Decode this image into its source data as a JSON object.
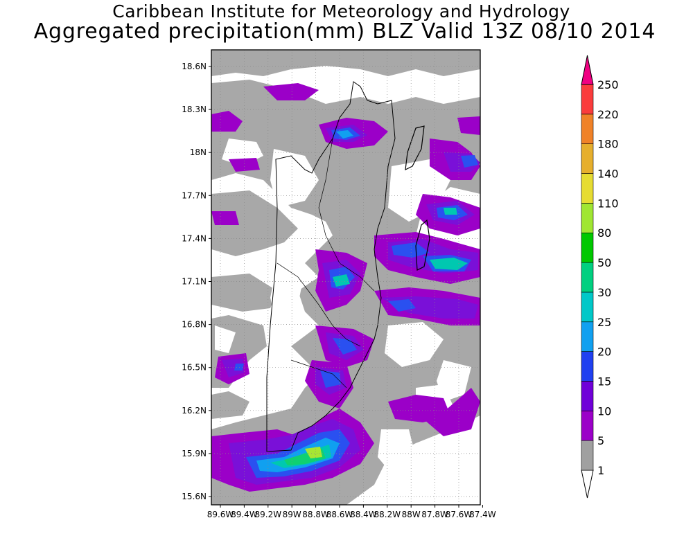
{
  "title": {
    "line1": "Caribbean Institute for Meteorology and Hydrology",
    "line2": "Aggregated precipitation(mm) BLZ Valid 13Z 08/10 2014"
  },
  "map": {
    "lat_labels": [
      "18.6N",
      "18.3N",
      "18N",
      "17.7N",
      "17.4N",
      "17.1N",
      "16.8N",
      "16.5N",
      "16.2N",
      "15.9N",
      "15.6N"
    ],
    "lon_labels": [
      "89.6W",
      "89.4W",
      "89.2W",
      "89W",
      "88.8W",
      "88.6W",
      "88.4W",
      "88.2W",
      "88W",
      "87.8W",
      "87.6W",
      "87.4W"
    ]
  },
  "colorbar": {
    "levels": [
      "1",
      "5",
      "10",
      "15",
      "20",
      "25",
      "30",
      "50",
      "80",
      "110",
      "140",
      "180",
      "220",
      "250"
    ],
    "colors": [
      "#a0a0a0",
      "#9b00c8",
      "#7000d8",
      "#2040f0",
      "#10a0f0",
      "#00c8c8",
      "#00d080",
      "#00c800",
      "#a0e632",
      "#e6dc32",
      "#e6af2d",
      "#f08228",
      "#fa3c3c",
      "#f00082"
    ],
    "under_color": "#ffffff"
  },
  "precip_colors": {
    "gray": "#a8a8a8",
    "purple": "#9b00c8",
    "violet": "#7a10d8",
    "blue": "#2a50f0",
    "lightblue": "#10a0f0",
    "teal": "#00c8b0",
    "green": "#10d070",
    "lime": "#a8e632"
  }
}
